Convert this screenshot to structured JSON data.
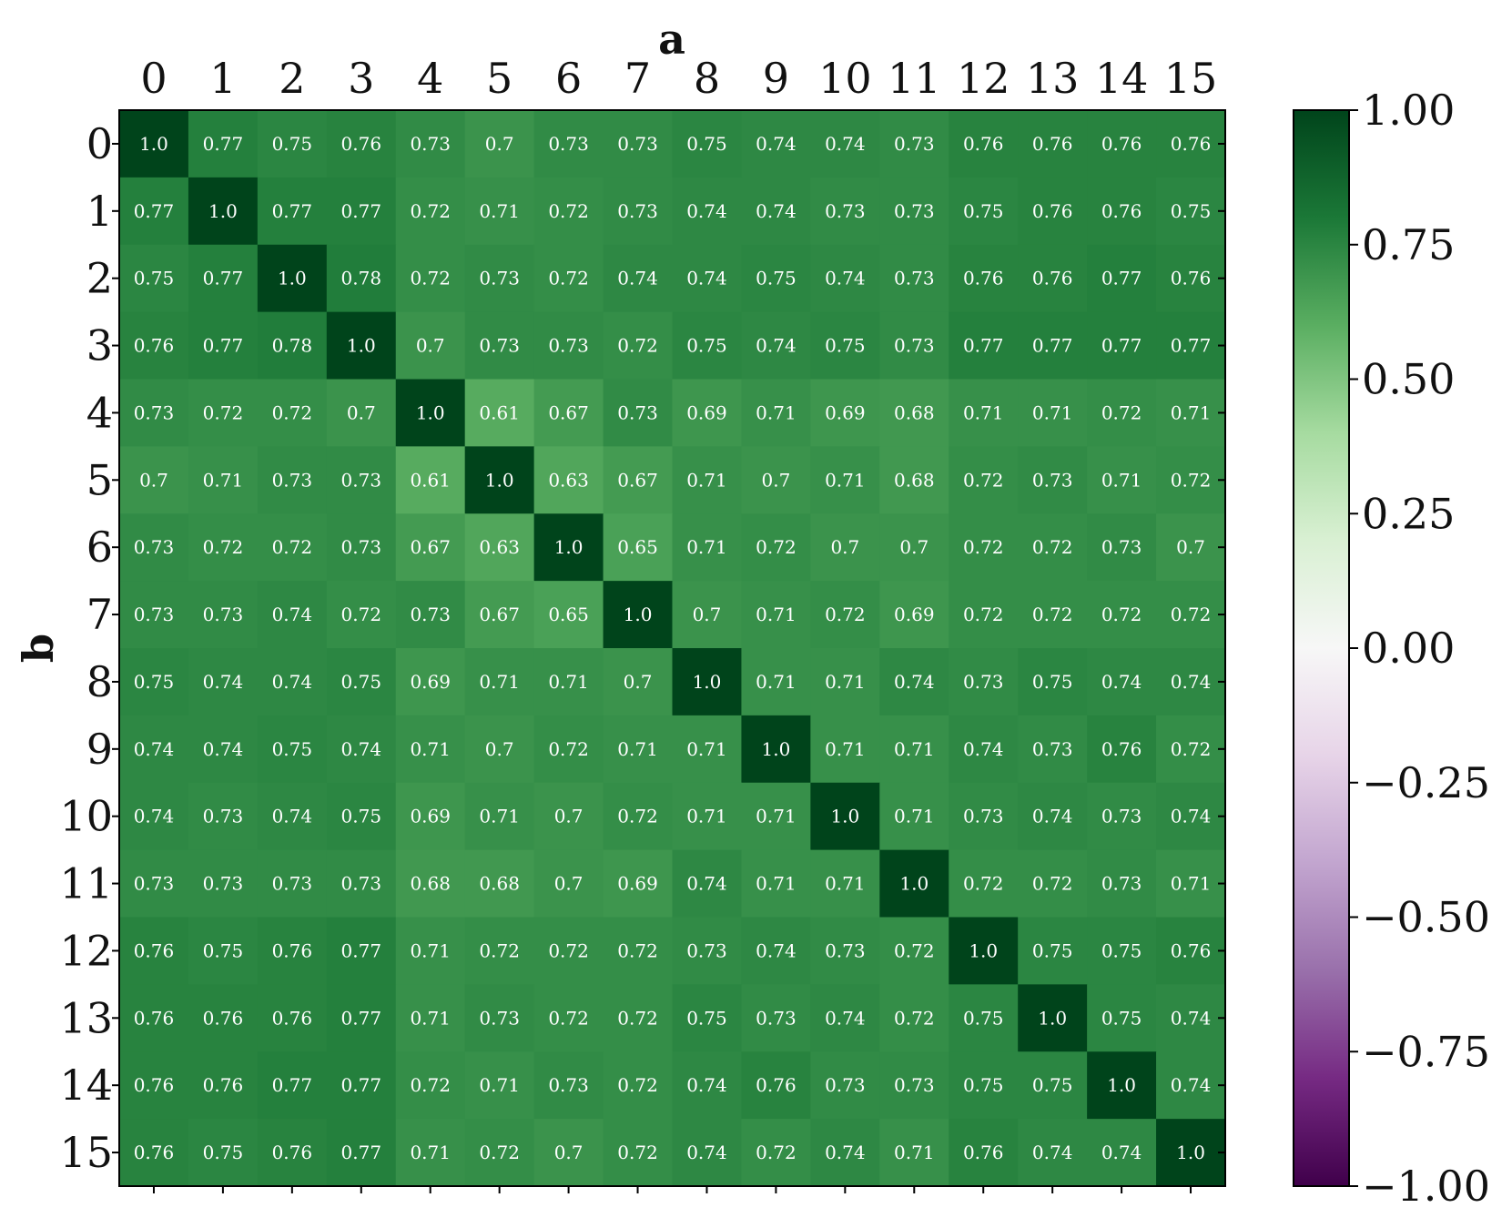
{
  "chart_data": {
    "type": "heatmap",
    "xlabel": "a",
    "ylabel": "b",
    "x_categories": [
      "0",
      "1",
      "2",
      "3",
      "4",
      "5",
      "6",
      "7",
      "8",
      "9",
      "10",
      "11",
      "12",
      "13",
      "14",
      "15"
    ],
    "y_categories": [
      "0",
      "1",
      "2",
      "3",
      "4",
      "5",
      "6",
      "7",
      "8",
      "9",
      "10",
      "11",
      "12",
      "13",
      "14",
      "15"
    ],
    "x_axis_position": "top",
    "colorbar": {
      "position": "right",
      "range": [
        -1.0,
        1.0
      ],
      "colormap": "PRGn",
      "ticks": [
        1.0,
        0.75,
        0.5,
        0.25,
        0.0,
        -0.25,
        -0.5,
        -0.75,
        -1.0
      ],
      "tick_labels": [
        "1.00",
        "0.75",
        "0.50",
        "0.25",
        "0.00",
        "−0.25",
        "−0.50",
        "−0.75",
        "−1.00"
      ]
    },
    "values": [
      [
        1.0,
        0.77,
        0.75,
        0.76,
        0.73,
        0.7,
        0.73,
        0.73,
        0.75,
        0.74,
        0.74,
        0.73,
        0.76,
        0.76,
        0.76,
        0.76
      ],
      [
        0.77,
        1.0,
        0.77,
        0.77,
        0.72,
        0.71,
        0.72,
        0.73,
        0.74,
        0.74,
        0.73,
        0.73,
        0.75,
        0.76,
        0.76,
        0.75
      ],
      [
        0.75,
        0.77,
        1.0,
        0.78,
        0.72,
        0.73,
        0.72,
        0.74,
        0.74,
        0.75,
        0.74,
        0.73,
        0.76,
        0.76,
        0.77,
        0.76
      ],
      [
        0.76,
        0.77,
        0.78,
        1.0,
        0.7,
        0.73,
        0.73,
        0.72,
        0.75,
        0.74,
        0.75,
        0.73,
        0.77,
        0.77,
        0.77,
        0.77
      ],
      [
        0.73,
        0.72,
        0.72,
        0.7,
        1.0,
        0.61,
        0.67,
        0.73,
        0.69,
        0.71,
        0.69,
        0.68,
        0.71,
        0.71,
        0.72,
        0.71
      ],
      [
        0.7,
        0.71,
        0.73,
        0.73,
        0.61,
        1.0,
        0.63,
        0.67,
        0.71,
        0.7,
        0.71,
        0.68,
        0.72,
        0.73,
        0.71,
        0.72
      ],
      [
        0.73,
        0.72,
        0.72,
        0.73,
        0.67,
        0.63,
        1.0,
        0.65,
        0.71,
        0.72,
        0.7,
        0.7,
        0.72,
        0.72,
        0.73,
        0.7
      ],
      [
        0.73,
        0.73,
        0.74,
        0.72,
        0.73,
        0.67,
        0.65,
        1.0,
        0.7,
        0.71,
        0.72,
        0.69,
        0.72,
        0.72,
        0.72,
        0.72
      ],
      [
        0.75,
        0.74,
        0.74,
        0.75,
        0.69,
        0.71,
        0.71,
        0.7,
        1.0,
        0.71,
        0.71,
        0.74,
        0.73,
        0.75,
        0.74,
        0.74
      ],
      [
        0.74,
        0.74,
        0.75,
        0.74,
        0.71,
        0.7,
        0.72,
        0.71,
        0.71,
        1.0,
        0.71,
        0.71,
        0.74,
        0.73,
        0.76,
        0.72
      ],
      [
        0.74,
        0.73,
        0.74,
        0.75,
        0.69,
        0.71,
        0.7,
        0.72,
        0.71,
        0.71,
        1.0,
        0.71,
        0.73,
        0.74,
        0.73,
        0.74
      ],
      [
        0.73,
        0.73,
        0.73,
        0.73,
        0.68,
        0.68,
        0.7,
        0.69,
        0.74,
        0.71,
        0.71,
        1.0,
        0.72,
        0.72,
        0.73,
        0.71
      ],
      [
        0.76,
        0.75,
        0.76,
        0.77,
        0.71,
        0.72,
        0.72,
        0.72,
        0.73,
        0.74,
        0.73,
        0.72,
        1.0,
        0.75,
        0.75,
        0.76
      ],
      [
        0.76,
        0.76,
        0.76,
        0.77,
        0.71,
        0.73,
        0.72,
        0.72,
        0.75,
        0.73,
        0.74,
        0.72,
        0.75,
        1.0,
        0.75,
        0.74
      ],
      [
        0.76,
        0.76,
        0.77,
        0.77,
        0.72,
        0.71,
        0.73,
        0.72,
        0.74,
        0.76,
        0.73,
        0.73,
        0.75,
        0.75,
        1.0,
        0.74
      ],
      [
        0.76,
        0.75,
        0.76,
        0.77,
        0.71,
        0.72,
        0.7,
        0.72,
        0.74,
        0.72,
        0.74,
        0.71,
        0.76,
        0.74,
        0.74,
        1.0
      ]
    ]
  }
}
